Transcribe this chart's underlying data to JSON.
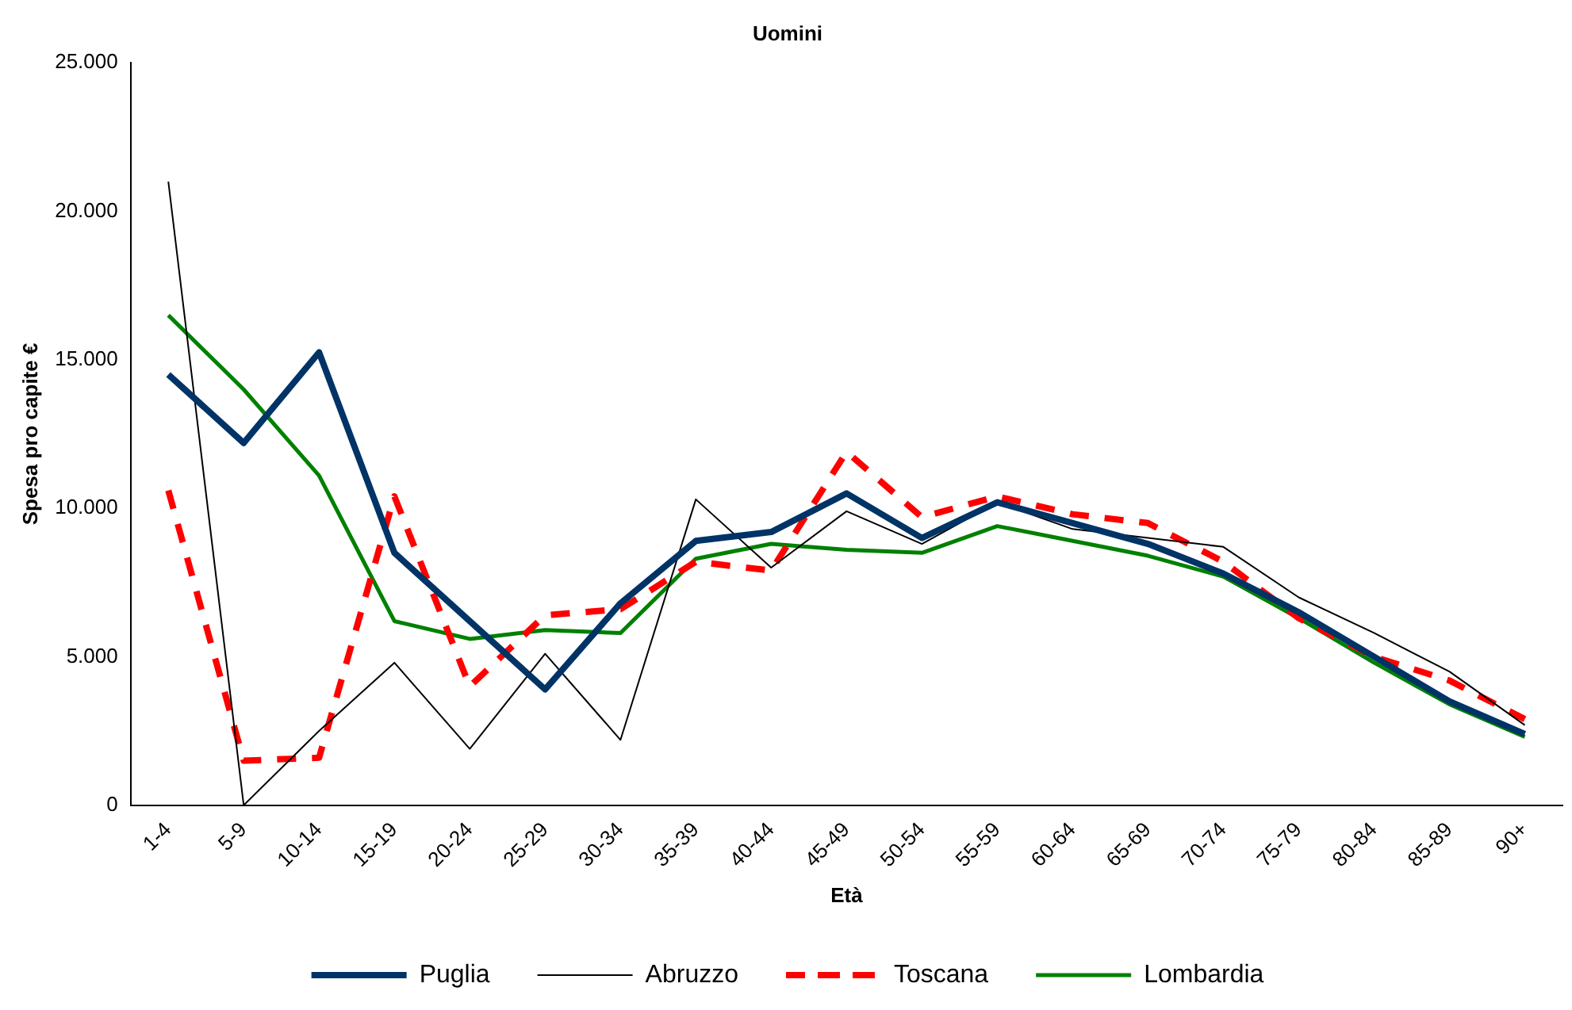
{
  "chart_data": {
    "type": "line",
    "title": "Uomini",
    "xlabel": "Età",
    "ylabel": "Spesa pro capite €",
    "categories": [
      "1-4",
      "5-9",
      "10-14",
      "15-19",
      "20-24",
      "25-29",
      "30-34",
      "35-39",
      "40-44",
      "45-49",
      "50-54",
      "55-59",
      "60-64",
      "65-69",
      "70-74",
      "75-79",
      "80-84",
      "85-89",
      "90+"
    ],
    "ylim": [
      0,
      25000
    ],
    "yticks": [
      {
        "value": 0,
        "label": "0"
      },
      {
        "value": 5000,
        "label": "5.000"
      },
      {
        "value": 10000,
        "label": "10.000"
      },
      {
        "value": 15000,
        "label": "15.000"
      },
      {
        "value": 20000,
        "label": "20.000"
      },
      {
        "value": 25000,
        "label": "25.000"
      }
    ],
    "grid": false,
    "legend": "bottom",
    "marker": "none",
    "series": [
      {
        "name": "Puglia",
        "color": "#003366",
        "line_style": "solid",
        "values": [
          14500,
          12200,
          15250,
          8500,
          6200,
          3900,
          6800,
          8900,
          9200,
          10500,
          9000,
          10200,
          9500,
          8800,
          7800,
          6500,
          5000,
          3500,
          2400
        ]
      },
      {
        "name": "Abruzzo",
        "color": "#000000",
        "line_style": "solid",
        "values": [
          21000,
          0,
          2500,
          4800,
          1900,
          5100,
          2200,
          10300,
          8000,
          9900,
          8800,
          10200,
          9300,
          9000,
          8700,
          7000,
          5800,
          4500,
          2700
        ]
      },
      {
        "name": "Toscana",
        "color": "#ff0000",
        "line_style": "dashed",
        "values": [
          10600,
          1500,
          1600,
          10400,
          4000,
          6400,
          6600,
          8200,
          7900,
          11900,
          9700,
          10400,
          9800,
          9500,
          8200,
          6300,
          5000,
          4200,
          2900
        ]
      },
      {
        "name": "Lombardia",
        "color": "#008000",
        "line_style": "solid",
        "values": [
          16500,
          14000,
          11100,
          6200,
          5600,
          5900,
          5800,
          8300,
          8800,
          8600,
          8500,
          9400,
          8900,
          8400,
          7700,
          6300,
          4800,
          3400,
          2300
        ]
      }
    ]
  }
}
